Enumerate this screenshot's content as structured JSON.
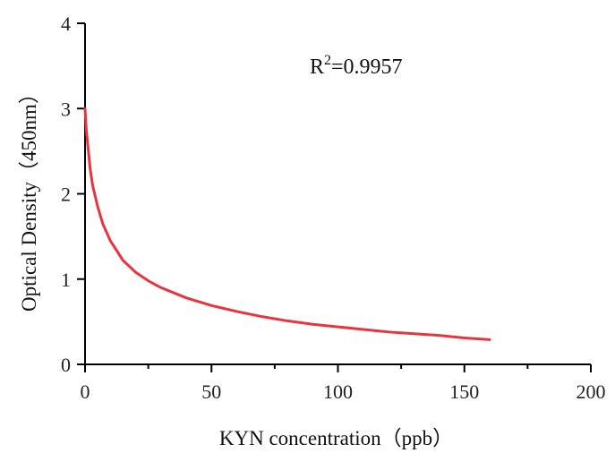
{
  "chart_data": {
    "type": "line",
    "title": "",
    "xlabel": "KYN concentration（ppb）",
    "ylabel": "Optical Density（450nm）",
    "xlim": [
      0,
      200
    ],
    "ylim": [
      0,
      4
    ],
    "x_ticks": [
      "0",
      "50",
      "100",
      "150",
      "200"
    ],
    "y_ticks": [
      "0",
      "1",
      "2",
      "3",
      "4"
    ],
    "grid": false,
    "legend": "none",
    "series": [
      {
        "color": "#e8343c",
        "x": [
          0,
          0.5,
          1,
          2,
          3,
          5,
          7,
          10,
          15,
          20,
          25,
          30,
          40,
          50,
          60,
          70,
          80,
          90,
          100,
          110,
          120,
          130,
          140,
          150,
          160
        ],
        "y": [
          3.0,
          2.75,
          2.6,
          2.3,
          2.1,
          1.85,
          1.65,
          1.45,
          1.22,
          1.08,
          0.98,
          0.9,
          0.78,
          0.69,
          0.62,
          0.56,
          0.51,
          0.47,
          0.44,
          0.41,
          0.38,
          0.36,
          0.34,
          0.31,
          0.29
        ]
      }
    ],
    "annotations": {
      "r_label": "R",
      "r_superscript": "2",
      "r_value": "=0.9957"
    }
  }
}
